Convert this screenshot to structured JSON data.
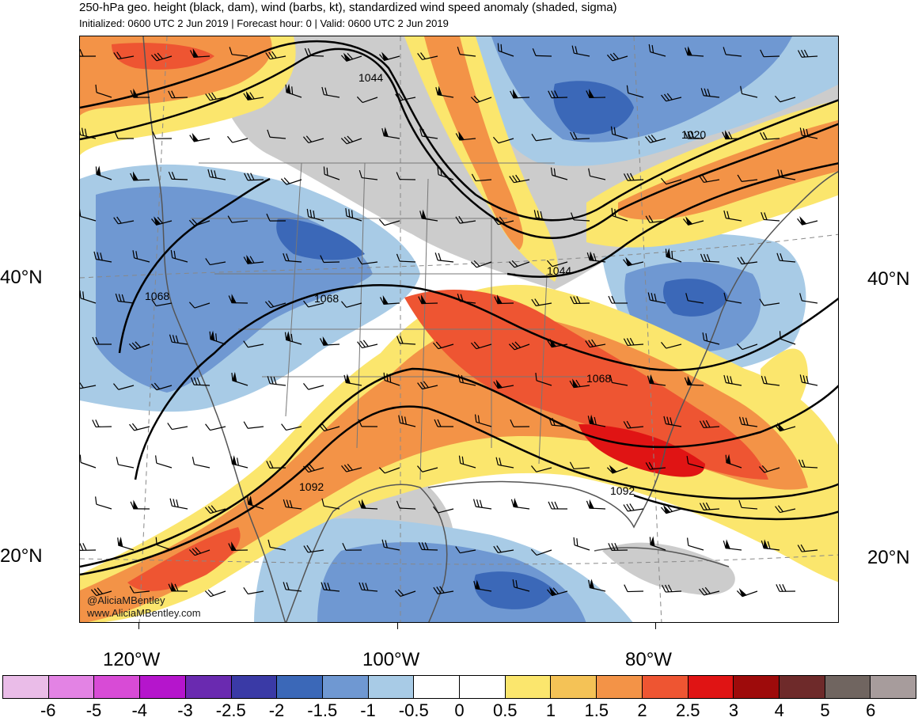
{
  "header": {
    "title": "250-hPa geo. height (black, dam), wind (barbs, kt), standardized wind speed anomaly (shaded, sigma)",
    "subtitle": "Initialized: 0600 UTC 2 Jun 2019 | Forecast hour: 0 | Valid: 0600 UTC 2 Jun 2019"
  },
  "axes": {
    "lat_left": [
      "40°N",
      "20°N"
    ],
    "lat_right": [
      "40°N",
      "20°N"
    ],
    "lon": [
      "120°W",
      "100°W",
      "80°W"
    ]
  },
  "contour_labels": [
    "1044",
    "1020",
    "1044",
    "1068",
    "1068",
    "1068",
    "1092",
    "1092"
  ],
  "credit": {
    "handle": "@AliciaMBentley",
    "website": "www.AliciaMBentley.com"
  },
  "colorbar": {
    "labels": [
      "-6",
      "-5",
      "-4",
      "-3",
      "-2.5",
      "-2",
      "-1.5",
      "-1",
      "-0.5",
      "0",
      "0.5",
      "1",
      "1.5",
      "2",
      "2.5",
      "3",
      "4",
      "5",
      "6"
    ],
    "colors": [
      "#eabce8",
      "#e383e4",
      "#d84bd6",
      "#b515cc",
      "#6a2ab0",
      "#3a3aa6",
      "#3b68b8",
      "#6f98d2",
      "#a8cbe6",
      "#ffffff",
      "#ffffff",
      "#fbe66d",
      "#f4c256",
      "#f39347",
      "#ee5532",
      "#e01414",
      "#9e0b0b",
      "#6e2a2a",
      "#706560",
      "#a79c9c"
    ]
  },
  "colors": {
    "land_gray": "#cccccc",
    "anomaly_blue_light": "#a8cbe6",
    "anomaly_blue_mid": "#6f98d2",
    "anomaly_blue_dark": "#3b68b8",
    "anomaly_yellow": "#fbe66d",
    "anomaly_light_orange": "#f4c256",
    "anomaly_orange": "#f39347",
    "anomaly_red_orange": "#ee5532",
    "anomaly_red": "#e01414"
  }
}
